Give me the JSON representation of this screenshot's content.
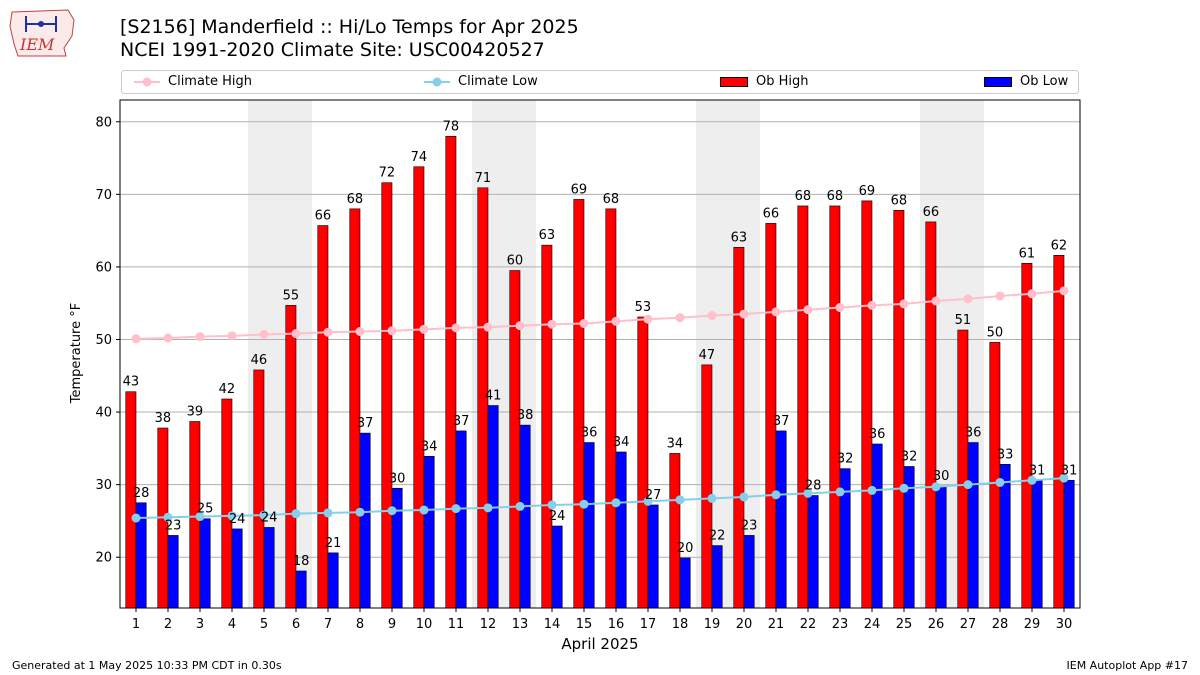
{
  "header": {
    "title_line1": "[S2156] Manderfield :: Hi/Lo Temps for Apr 2025",
    "title_line2": "NCEI 1991-2020 Climate Site: USC00420527",
    "logo_text": "IEM"
  },
  "legend": {
    "items": [
      {
        "label": "Climate High",
        "color": "#ffc0cb",
        "kind": "line"
      },
      {
        "label": "Climate Low",
        "color": "#87ceeb",
        "kind": "line"
      },
      {
        "label": "Ob High",
        "color": "#ff0000",
        "kind": "bar"
      },
      {
        "label": "Ob Low",
        "color": "#0000ff",
        "kind": "bar"
      }
    ]
  },
  "footer": {
    "left": "Generated at 1 May 2025 10:33 PM CDT in 0.30s",
    "right": "IEM Autoplot App #17"
  },
  "chart_data": {
    "type": "bar",
    "xlabel": "April 2025",
    "ylabel": "Temperature °F",
    "ylim": [
      13,
      83
    ],
    "yticks": [
      20,
      30,
      40,
      50,
      60,
      70,
      80
    ],
    "grid": true,
    "legend_position": "top",
    "categories": [
      "1",
      "2",
      "3",
      "4",
      "5",
      "6",
      "7",
      "8",
      "9",
      "10",
      "11",
      "12",
      "13",
      "14",
      "15",
      "16",
      "17",
      "18",
      "19",
      "20",
      "21",
      "22",
      "23",
      "24",
      "25",
      "26",
      "27",
      "28",
      "29",
      "30"
    ],
    "weekend_shading_days": [
      5,
      6,
      12,
      13,
      19,
      20,
      26,
      27
    ],
    "series": [
      {
        "name": "Ob High",
        "type": "bar",
        "color": "#ff0000",
        "values": [
          42.8,
          37.8,
          38.7,
          41.8,
          45.8,
          54.7,
          65.7,
          68.0,
          71.6,
          73.8,
          78.0,
          70.9,
          59.5,
          63.0,
          69.3,
          68.0,
          53.1,
          34.3,
          46.5,
          62.7,
          66.0,
          68.4,
          68.4,
          69.1,
          67.8,
          66.2,
          51.3,
          49.6,
          60.5,
          61.6
        ],
        "labels": [
          "43",
          "38",
          "39",
          "42",
          "46",
          "55",
          "66",
          "68",
          "72",
          "74",
          "78",
          "71",
          "60",
          "63",
          "69",
          "68",
          "53",
          "34",
          "47",
          "63",
          "66",
          "68",
          "68",
          "69",
          "68",
          "66",
          "51",
          "50",
          "61",
          "62"
        ]
      },
      {
        "name": "Ob Low",
        "type": "bar",
        "color": "#0000ff",
        "values": [
          27.5,
          23.0,
          25.3,
          23.9,
          24.1,
          18.1,
          20.6,
          37.1,
          29.5,
          33.9,
          37.4,
          40.9,
          38.2,
          24.3,
          35.8,
          34.5,
          27.2,
          19.9,
          21.6,
          23.0,
          37.4,
          28.5,
          32.2,
          35.6,
          32.5,
          29.8,
          35.8,
          32.8,
          30.6,
          30.6
        ],
        "labels": [
          "28",
          "23",
          "25",
          "24",
          "24",
          "18",
          "21",
          "37",
          "30",
          "34",
          "37",
          "41",
          "38",
          "24",
          "36",
          "34",
          "27",
          "20",
          "22",
          "23",
          "37",
          "28",
          "32",
          "36",
          "32",
          "30",
          "36",
          "33",
          "31",
          "31"
        ]
      },
      {
        "name": "Climate High",
        "type": "line",
        "color": "#ffc0cb",
        "values": [
          50.1,
          50.2,
          50.4,
          50.5,
          50.7,
          50.8,
          51.0,
          51.1,
          51.2,
          51.4,
          51.6,
          51.7,
          51.9,
          52.1,
          52.2,
          52.5,
          52.8,
          53.0,
          53.3,
          53.5,
          53.8,
          54.1,
          54.4,
          54.7,
          54.9,
          55.3,
          55.6,
          56.0,
          56.3,
          56.7
        ]
      },
      {
        "name": "Climate Low",
        "type": "line",
        "color": "#87ceeb",
        "values": [
          25.4,
          25.5,
          25.6,
          25.7,
          25.8,
          26.0,
          26.1,
          26.2,
          26.4,
          26.5,
          26.7,
          26.8,
          27.0,
          27.2,
          27.3,
          27.5,
          27.7,
          27.9,
          28.1,
          28.3,
          28.6,
          28.8,
          29.0,
          29.2,
          29.5,
          29.7,
          30.0,
          30.3,
          30.6,
          30.9
        ]
      }
    ]
  }
}
